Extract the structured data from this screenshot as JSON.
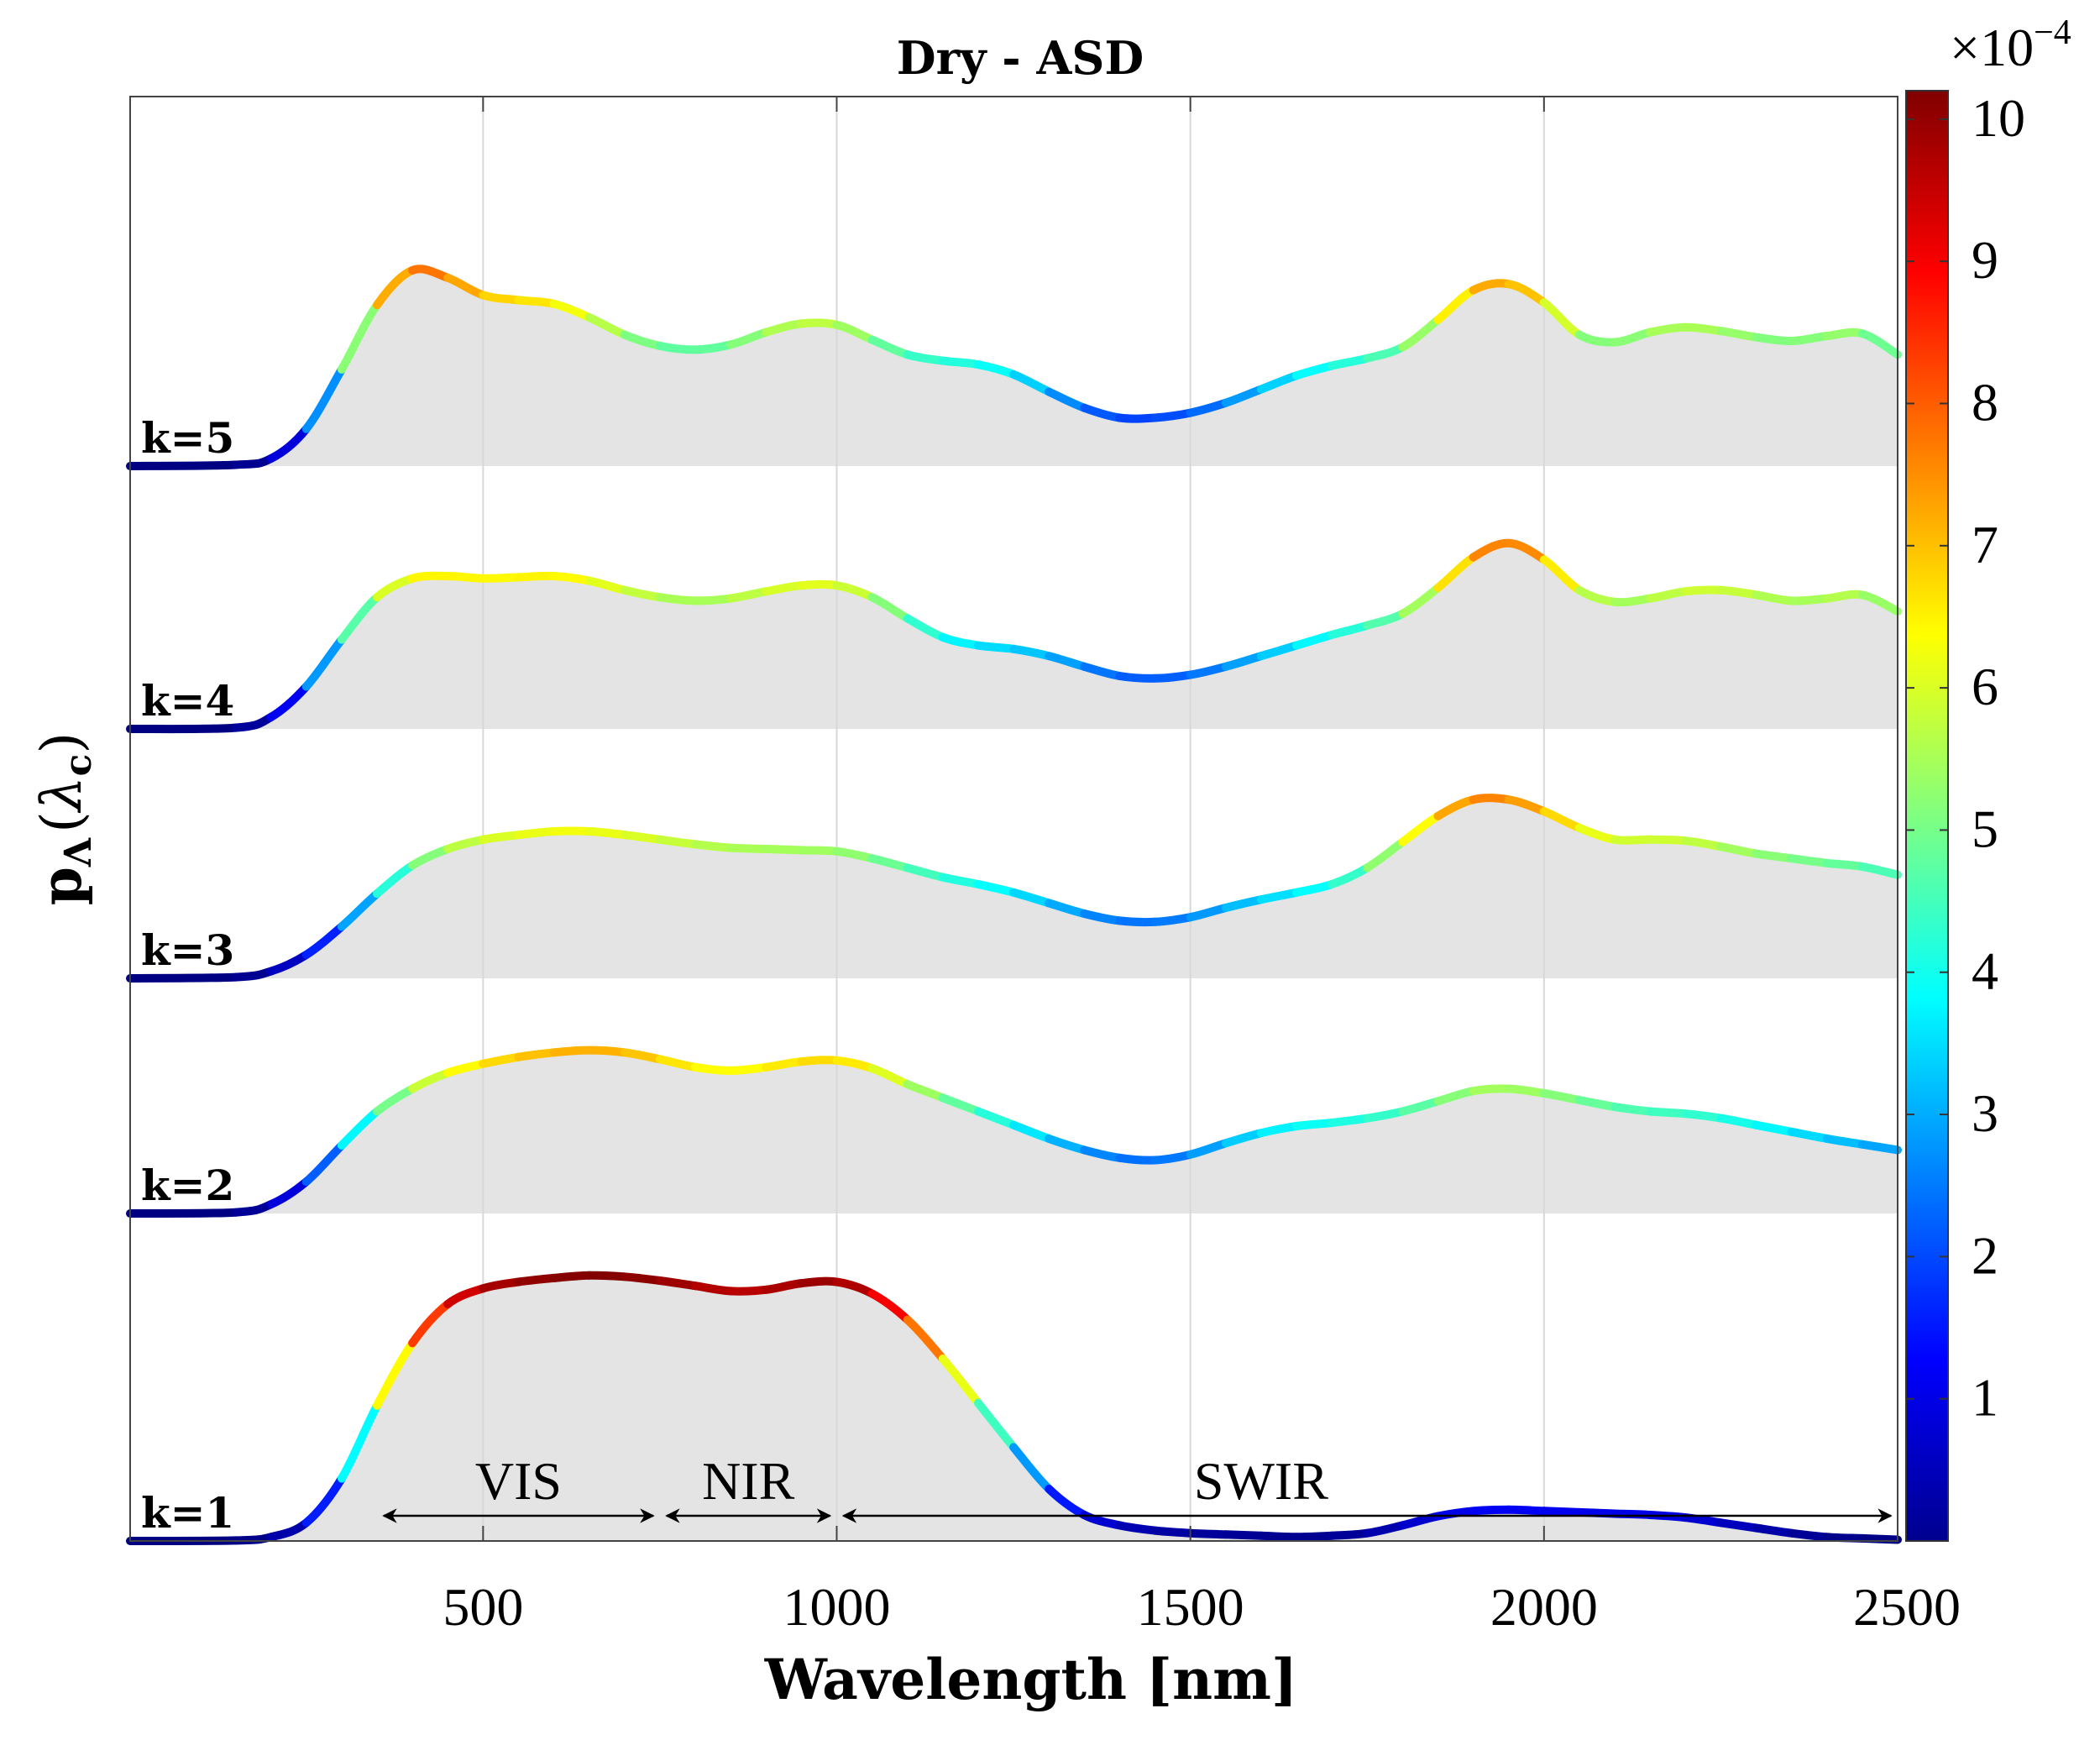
{
  "chart_data": {
    "type": "area",
    "title": "Dry - ASD",
    "xlabel": "Wavelength [nm]",
    "ylabel": "p",
    "ylabel_sub": "Λ",
    "ylabel_arg_open": "(",
    "ylabel_arg": "λ",
    "ylabel_arg_sub": "c",
    "ylabel_arg_close": ")",
    "xlim": [
      1,
      2500
    ],
    "xticks": [
      500,
      1000,
      1500,
      2000,
      2500
    ],
    "grid": true,
    "colormap": "jet",
    "colorbar": {
      "label": "×10",
      "exponent": "−4",
      "min": 0,
      "max": 10.2,
      "ticks": [
        1,
        2,
        3,
        4,
        5,
        6,
        7,
        8,
        9,
        10
      ]
    },
    "regions": [
      {
        "name": "VIS",
        "from": 350,
        "to": 750
      },
      {
        "name": "NIR",
        "from": 750,
        "to": 1000
      },
      {
        "name": "SWIR",
        "from": 1000,
        "to": 2500
      }
    ],
    "series": [
      {
        "name": "k=1",
        "x": [
          1,
          150,
          200,
          250,
          300,
          350,
          400,
          450,
          500,
          550,
          600,
          650,
          700,
          750,
          800,
          850,
          900,
          950,
          1000,
          1050,
          1100,
          1150,
          1200,
          1250,
          1300,
          1350,
          1400,
          1450,
          1500,
          1550,
          1600,
          1650,
          1700,
          1750,
          1800,
          1850,
          1900,
          1950,
          2000,
          2050,
          2100,
          2150,
          2200,
          2250,
          2300,
          2350,
          2400,
          2450,
          2500
        ],
        "values": [
          0,
          0.02,
          0.15,
          0.7,
          2.4,
          5.2,
          7.6,
          9.1,
          9.7,
          9.95,
          10.1,
          10.2,
          10.15,
          10.0,
          9.8,
          9.6,
          9.65,
          9.9,
          9.95,
          9.5,
          8.5,
          7.0,
          5.3,
          3.6,
          2.0,
          1.0,
          0.6,
          0.4,
          0.3,
          0.25,
          0.2,
          0.15,
          0.2,
          0.3,
          0.6,
          0.95,
          1.15,
          1.2,
          1.15,
          1.1,
          1.05,
          1.0,
          0.9,
          0.7,
          0.5,
          0.3,
          0.15,
          0.1,
          0.05
        ]
      },
      {
        "name": "k=2",
        "x": [
          1,
          150,
          200,
          250,
          300,
          350,
          400,
          450,
          500,
          550,
          600,
          650,
          700,
          750,
          800,
          850,
          900,
          950,
          1000,
          1050,
          1100,
          1150,
          1200,
          1250,
          1300,
          1350,
          1400,
          1450,
          1500,
          1550,
          1600,
          1650,
          1700,
          1750,
          1800,
          1850,
          1900,
          1950,
          2000,
          2050,
          2100,
          2150,
          2200,
          2250,
          2300,
          2350,
          2400,
          2450,
          2500
        ],
        "values": [
          0,
          0.05,
          0.4,
          1.4,
          3.0,
          4.5,
          5.5,
          6.2,
          6.6,
          6.9,
          7.1,
          7.2,
          7.1,
          6.8,
          6.45,
          6.3,
          6.45,
          6.7,
          6.75,
          6.4,
          5.7,
          5.1,
          4.5,
          3.9,
          3.3,
          2.8,
          2.45,
          2.35,
          2.6,
          3.1,
          3.55,
          3.85,
          4.0,
          4.2,
          4.5,
          4.95,
          5.4,
          5.5,
          5.3,
          5.0,
          4.7,
          4.5,
          4.4,
          4.2,
          3.9,
          3.6,
          3.3,
          3.05,
          2.8
        ]
      },
      {
        "name": "k=3",
        "x": [
          1,
          150,
          200,
          250,
          300,
          350,
          400,
          450,
          500,
          550,
          600,
          650,
          700,
          750,
          800,
          850,
          900,
          950,
          1000,
          1050,
          1100,
          1150,
          1200,
          1250,
          1300,
          1350,
          1400,
          1450,
          1500,
          1550,
          1600,
          1650,
          1700,
          1750,
          1800,
          1850,
          1900,
          1950,
          2000,
          2050,
          2100,
          2150,
          2200,
          2250,
          2300,
          2350,
          2400,
          2450,
          2500
        ],
        "values": [
          0,
          0.05,
          0.3,
          1.0,
          2.2,
          3.6,
          4.8,
          5.5,
          5.9,
          6.1,
          6.25,
          6.25,
          6.1,
          5.9,
          5.7,
          5.55,
          5.5,
          5.45,
          5.4,
          5.1,
          4.7,
          4.3,
          4.0,
          3.65,
          3.2,
          2.75,
          2.45,
          2.4,
          2.6,
          3.0,
          3.35,
          3.65,
          4.0,
          4.7,
          5.8,
          6.9,
          7.6,
          7.6,
          7.1,
          6.4,
          5.9,
          5.9,
          5.85,
          5.6,
          5.3,
          5.1,
          4.9,
          4.75,
          4.4
        ]
      },
      {
        "name": "k=4",
        "x": [
          1,
          150,
          200,
          250,
          300,
          350,
          400,
          450,
          500,
          550,
          600,
          650,
          700,
          750,
          800,
          850,
          900,
          950,
          1000,
          1050,
          1100,
          1150,
          1200,
          1250,
          1300,
          1350,
          1400,
          1450,
          1500,
          1550,
          1600,
          1650,
          1700,
          1750,
          1800,
          1850,
          1900,
          1950,
          2000,
          2050,
          2100,
          2150,
          2200,
          2250,
          2300,
          2350,
          2400,
          2450,
          2500
        ],
        "values": [
          0,
          0.05,
          0.5,
          1.8,
          3.8,
          5.6,
          6.4,
          6.5,
          6.4,
          6.45,
          6.5,
          6.3,
          5.9,
          5.6,
          5.45,
          5.55,
          5.85,
          6.1,
          6.1,
          5.6,
          4.7,
          3.9,
          3.55,
          3.4,
          3.1,
          2.65,
          2.25,
          2.15,
          2.3,
          2.65,
          3.1,
          3.55,
          4.0,
          4.4,
          4.9,
          6.0,
          7.3,
          7.9,
          7.2,
          5.9,
          5.4,
          5.55,
          5.85,
          5.9,
          5.7,
          5.45,
          5.55,
          5.7,
          5.0
        ]
      },
      {
        "name": "k=5",
        "x": [
          1,
          150,
          200,
          250,
          300,
          350,
          400,
          450,
          500,
          550,
          600,
          650,
          700,
          750,
          800,
          850,
          900,
          950,
          1000,
          1050,
          1100,
          1150,
          1200,
          1250,
          1300,
          1350,
          1400,
          1450,
          1500,
          1550,
          1600,
          1650,
          1700,
          1750,
          1800,
          1850,
          1900,
          1950,
          2000,
          2050,
          2100,
          2150,
          2200,
          2250,
          2300,
          2350,
          2400,
          2450,
          2500
        ],
        "values": [
          0,
          0.05,
          0.3,
          1.5,
          3.9,
          6.5,
          7.9,
          7.6,
          6.9,
          6.7,
          6.55,
          6.0,
          5.3,
          4.85,
          4.7,
          4.9,
          5.4,
          5.75,
          5.7,
          5.1,
          4.5,
          4.25,
          4.1,
          3.7,
          3.0,
          2.35,
          1.95,
          1.95,
          2.15,
          2.55,
          3.1,
          3.65,
          4.05,
          4.35,
          4.8,
          5.9,
          7.1,
          7.35,
          6.6,
          5.3,
          5.0,
          5.4,
          5.6,
          5.45,
          5.2,
          5.05,
          5.25,
          5.35,
          4.5
        ]
      }
    ]
  }
}
